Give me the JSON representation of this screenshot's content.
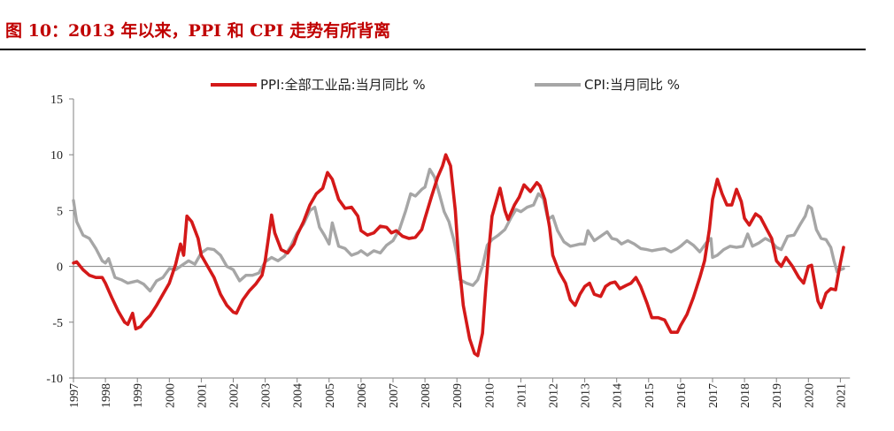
{
  "title": "图 10：2013 年以来，PPI 和 CPI 走势有所背离",
  "chart_data": {
    "type": "line",
    "title": "图 10：2013 年以来，PPI 和 CPI 走势有所背离",
    "xlabel": "",
    "ylabel": "",
    "xlim": [
      1997,
      2021.3
    ],
    "ylim": [
      -10,
      15
    ],
    "yticks": [
      -10,
      -5,
      0,
      5,
      10,
      15
    ],
    "xticks": [
      "1997",
      "1998",
      "1999",
      "2000",
      "2001",
      "2002",
      "2003",
      "2004",
      "2005",
      "2006",
      "2007",
      "2008",
      "2009",
      "2010",
      "2011",
      "2012",
      "2013",
      "2014",
      "2015",
      "2016",
      "2017",
      "2018",
      "2019",
      "2020",
      "2021"
    ],
    "legend": "top-center",
    "grid": false,
    "series": [
      {
        "name": "PPI:全部工业品:当月同比 %",
        "color": "#d41919",
        "points": [
          [
            1997.0,
            0.3
          ],
          [
            1997.1,
            0.4
          ],
          [
            1997.3,
            -0.3
          ],
          [
            1997.5,
            -0.8
          ],
          [
            1997.7,
            -1.0
          ],
          [
            1997.9,
            -1.0
          ],
          [
            1998.0,
            -1.5
          ],
          [
            1998.2,
            -2.8
          ],
          [
            1998.4,
            -4.0
          ],
          [
            1998.6,
            -5.0
          ],
          [
            1998.7,
            -5.2
          ],
          [
            1998.85,
            -4.2
          ],
          [
            1998.95,
            -5.6
          ],
          [
            1999.1,
            -5.4
          ],
          [
            1999.2,
            -5.0
          ],
          [
            1999.4,
            -4.4
          ],
          [
            1999.6,
            -3.5
          ],
          [
            1999.8,
            -2.5
          ],
          [
            2000.0,
            -1.5
          ],
          [
            2000.2,
            0.2
          ],
          [
            2000.35,
            2.0
          ],
          [
            2000.45,
            1.0
          ],
          [
            2000.55,
            4.5
          ],
          [
            2000.7,
            4.0
          ],
          [
            2000.9,
            2.5
          ],
          [
            2001.0,
            1.0
          ],
          [
            2001.2,
            0.0
          ],
          [
            2001.4,
            -1.0
          ],
          [
            2001.6,
            -2.5
          ],
          [
            2001.8,
            -3.5
          ],
          [
            2002.0,
            -4.1
          ],
          [
            2002.1,
            -4.2
          ],
          [
            2002.3,
            -3.0
          ],
          [
            2002.5,
            -2.2
          ],
          [
            2002.7,
            -1.6
          ],
          [
            2002.9,
            -0.8
          ],
          [
            2003.0,
            0.5
          ],
          [
            2003.1,
            2.5
          ],
          [
            2003.2,
            4.6
          ],
          [
            2003.3,
            3.0
          ],
          [
            2003.5,
            1.5
          ],
          [
            2003.7,
            1.2
          ],
          [
            2003.9,
            2.0
          ],
          [
            2004.0,
            2.8
          ],
          [
            2004.2,
            4.0
          ],
          [
            2004.4,
            5.5
          ],
          [
            2004.6,
            6.5
          ],
          [
            2004.8,
            7.0
          ],
          [
            2004.95,
            8.4
          ],
          [
            2005.1,
            7.8
          ],
          [
            2005.3,
            6.0
          ],
          [
            2005.5,
            5.2
          ],
          [
            2005.7,
            5.3
          ],
          [
            2005.9,
            4.5
          ],
          [
            2006.0,
            3.2
          ],
          [
            2006.2,
            2.8
          ],
          [
            2006.4,
            3.0
          ],
          [
            2006.6,
            3.6
          ],
          [
            2006.8,
            3.5
          ],
          [
            2006.95,
            3.0
          ],
          [
            2007.1,
            3.2
          ],
          [
            2007.3,
            2.7
          ],
          [
            2007.5,
            2.5
          ],
          [
            2007.7,
            2.6
          ],
          [
            2007.9,
            3.3
          ],
          [
            2008.0,
            4.3
          ],
          [
            2008.2,
            6.2
          ],
          [
            2008.4,
            8.0
          ],
          [
            2008.55,
            9.0
          ],
          [
            2008.65,
            10.0
          ],
          [
            2008.8,
            9.0
          ],
          [
            2008.95,
            5.0
          ],
          [
            2009.05,
            0.8
          ],
          [
            2009.2,
            -3.5
          ],
          [
            2009.4,
            -6.5
          ],
          [
            2009.55,
            -7.8
          ],
          [
            2009.65,
            -8.0
          ],
          [
            2009.8,
            -6.0
          ],
          [
            2009.9,
            -2.0
          ],
          [
            2010.0,
            1.5
          ],
          [
            2010.1,
            4.5
          ],
          [
            2010.25,
            6.0
          ],
          [
            2010.35,
            7.0
          ],
          [
            2010.5,
            5.0
          ],
          [
            2010.6,
            4.2
          ],
          [
            2010.8,
            5.5
          ],
          [
            2010.95,
            6.2
          ],
          [
            2011.1,
            7.3
          ],
          [
            2011.3,
            6.7
          ],
          [
            2011.5,
            7.5
          ],
          [
            2011.6,
            7.2
          ],
          [
            2011.75,
            6.0
          ],
          [
            2011.9,
            3.5
          ],
          [
            2012.0,
            1.0
          ],
          [
            2012.2,
            -0.5
          ],
          [
            2012.4,
            -1.5
          ],
          [
            2012.55,
            -3.0
          ],
          [
            2012.7,
            -3.5
          ],
          [
            2012.85,
            -2.5
          ],
          [
            2013.0,
            -1.8
          ],
          [
            2013.15,
            -1.5
          ],
          [
            2013.3,
            -2.5
          ],
          [
            2013.5,
            -2.7
          ],
          [
            2013.65,
            -1.8
          ],
          [
            2013.8,
            -1.5
          ],
          [
            2013.95,
            -1.4
          ],
          [
            2014.1,
            -2.0
          ],
          [
            2014.3,
            -1.7
          ],
          [
            2014.45,
            -1.5
          ],
          [
            2014.6,
            -1.0
          ],
          [
            2014.75,
            -1.8
          ],
          [
            2014.95,
            -3.3
          ],
          [
            2015.1,
            -4.6
          ],
          [
            2015.3,
            -4.6
          ],
          [
            2015.5,
            -4.8
          ],
          [
            2015.7,
            -5.9
          ],
          [
            2015.9,
            -5.9
          ],
          [
            2016.0,
            -5.3
          ],
          [
            2016.2,
            -4.3
          ],
          [
            2016.4,
            -2.8
          ],
          [
            2016.6,
            -1.0
          ],
          [
            2016.75,
            0.5
          ],
          [
            2016.9,
            3.3
          ],
          [
            2017.0,
            6.0
          ],
          [
            2017.15,
            7.8
          ],
          [
            2017.3,
            6.5
          ],
          [
            2017.45,
            5.5
          ],
          [
            2017.6,
            5.5
          ],
          [
            2017.75,
            6.9
          ],
          [
            2017.9,
            5.8
          ],
          [
            2018.0,
            4.3
          ],
          [
            2018.15,
            3.7
          ],
          [
            2018.35,
            4.7
          ],
          [
            2018.5,
            4.4
          ],
          [
            2018.7,
            3.3
          ],
          [
            2018.85,
            2.5
          ],
          [
            2019.0,
            0.5
          ],
          [
            2019.15,
            0.0
          ],
          [
            2019.3,
            0.8
          ],
          [
            2019.5,
            0.0
          ],
          [
            2019.7,
            -1.0
          ],
          [
            2019.85,
            -1.5
          ],
          [
            2020.0,
            0.0
          ],
          [
            2020.1,
            0.1
          ],
          [
            2020.2,
            -1.5
          ],
          [
            2020.3,
            -3.1
          ],
          [
            2020.4,
            -3.7
          ],
          [
            2020.55,
            -2.4
          ],
          [
            2020.7,
            -2.0
          ],
          [
            2020.85,
            -2.1
          ],
          [
            2021.0,
            0.3
          ],
          [
            2021.1,
            1.7
          ]
        ]
      },
      {
        "name": "CPI:当月同比 %",
        "color": "#a6a6a6",
        "points": [
          [
            1997.0,
            5.9
          ],
          [
            1997.1,
            4.0
          ],
          [
            1997.3,
            2.8
          ],
          [
            1997.5,
            2.5
          ],
          [
            1997.7,
            1.6
          ],
          [
            1997.9,
            0.5
          ],
          [
            1998.0,
            0.3
          ],
          [
            1998.1,
            0.7
          ],
          [
            1998.3,
            -1.0
          ],
          [
            1998.5,
            -1.2
          ],
          [
            1998.7,
            -1.5
          ],
          [
            1998.85,
            -1.4
          ],
          [
            1999.0,
            -1.3
          ],
          [
            1999.2,
            -1.6
          ],
          [
            1999.4,
            -2.2
          ],
          [
            1999.6,
            -1.3
          ],
          [
            1999.8,
            -1.0
          ],
          [
            2000.0,
            -0.2
          ],
          [
            2000.2,
            -0.3
          ],
          [
            2000.4,
            0.1
          ],
          [
            2000.6,
            0.5
          ],
          [
            2000.8,
            0.2
          ],
          [
            2001.0,
            1.2
          ],
          [
            2001.2,
            1.6
          ],
          [
            2001.4,
            1.5
          ],
          [
            2001.6,
            1.0
          ],
          [
            2001.8,
            0.0
          ],
          [
            2002.0,
            -0.3
          ],
          [
            2002.2,
            -1.3
          ],
          [
            2002.4,
            -0.8
          ],
          [
            2002.6,
            -0.8
          ],
          [
            2002.8,
            -0.6
          ],
          [
            2003.0,
            0.4
          ],
          [
            2003.2,
            0.8
          ],
          [
            2003.4,
            0.5
          ],
          [
            2003.6,
            0.9
          ],
          [
            2003.8,
            1.8
          ],
          [
            2004.0,
            3.0
          ],
          [
            2004.2,
            3.8
          ],
          [
            2004.4,
            5.0
          ],
          [
            2004.55,
            5.3
          ],
          [
            2004.7,
            3.5
          ],
          [
            2004.85,
            2.8
          ],
          [
            2005.0,
            2.0
          ],
          [
            2005.1,
            3.9
          ],
          [
            2005.3,
            1.8
          ],
          [
            2005.5,
            1.6
          ],
          [
            2005.7,
            1.0
          ],
          [
            2005.9,
            1.2
          ],
          [
            2006.0,
            1.4
          ],
          [
            2006.2,
            1.0
          ],
          [
            2006.4,
            1.4
          ],
          [
            2006.6,
            1.2
          ],
          [
            2006.8,
            1.9
          ],
          [
            2007.0,
            2.3
          ],
          [
            2007.2,
            3.3
          ],
          [
            2007.4,
            5.0
          ],
          [
            2007.55,
            6.5
          ],
          [
            2007.7,
            6.3
          ],
          [
            2007.9,
            6.9
          ],
          [
            2008.0,
            7.1
          ],
          [
            2008.15,
            8.7
          ],
          [
            2008.3,
            8.0
          ],
          [
            2008.45,
            6.5
          ],
          [
            2008.6,
            4.9
          ],
          [
            2008.75,
            4.0
          ],
          [
            2008.9,
            2.4
          ],
          [
            2009.0,
            1.0
          ],
          [
            2009.1,
            -1.2
          ],
          [
            2009.3,
            -1.5
          ],
          [
            2009.5,
            -1.7
          ],
          [
            2009.65,
            -1.2
          ],
          [
            2009.8,
            0.0
          ],
          [
            2009.95,
            1.9
          ],
          [
            2010.1,
            2.4
          ],
          [
            2010.3,
            2.8
          ],
          [
            2010.5,
            3.3
          ],
          [
            2010.7,
            4.4
          ],
          [
            2010.85,
            5.1
          ],
          [
            2011.0,
            4.9
          ],
          [
            2011.2,
            5.3
          ],
          [
            2011.4,
            5.5
          ],
          [
            2011.55,
            6.5
          ],
          [
            2011.7,
            6.1
          ],
          [
            2011.85,
            4.2
          ],
          [
            2012.0,
            4.5
          ],
          [
            2012.15,
            3.2
          ],
          [
            2012.35,
            2.2
          ],
          [
            2012.55,
            1.8
          ],
          [
            2012.7,
            1.9
          ],
          [
            2012.85,
            2.0
          ],
          [
            2013.0,
            2.0
          ],
          [
            2013.1,
            3.2
          ],
          [
            2013.3,
            2.3
          ],
          [
            2013.5,
            2.7
          ],
          [
            2013.7,
            3.1
          ],
          [
            2013.85,
            2.5
          ],
          [
            2014.0,
            2.4
          ],
          [
            2014.15,
            2.0
          ],
          [
            2014.35,
            2.3
          ],
          [
            2014.55,
            2.0
          ],
          [
            2014.75,
            1.6
          ],
          [
            2014.95,
            1.5
          ],
          [
            2015.1,
            1.4
          ],
          [
            2015.3,
            1.5
          ],
          [
            2015.5,
            1.6
          ],
          [
            2015.7,
            1.3
          ],
          [
            2015.9,
            1.6
          ],
          [
            2016.0,
            1.8
          ],
          [
            2016.2,
            2.3
          ],
          [
            2016.4,
            1.9
          ],
          [
            2016.6,
            1.3
          ],
          [
            2016.8,
            2.1
          ],
          [
            2016.95,
            2.5
          ],
          [
            2017.0,
            0.8
          ],
          [
            2017.15,
            1.0
          ],
          [
            2017.35,
            1.5
          ],
          [
            2017.55,
            1.8
          ],
          [
            2017.75,
            1.7
          ],
          [
            2017.95,
            1.8
          ],
          [
            2018.1,
            2.9
          ],
          [
            2018.25,
            1.8
          ],
          [
            2018.45,
            2.1
          ],
          [
            2018.65,
            2.5
          ],
          [
            2018.85,
            2.2
          ],
          [
            2019.0,
            1.7
          ],
          [
            2019.15,
            1.5
          ],
          [
            2019.35,
            2.7
          ],
          [
            2019.55,
            2.8
          ],
          [
            2019.75,
            3.8
          ],
          [
            2019.9,
            4.5
          ],
          [
            2020.0,
            5.4
          ],
          [
            2020.1,
            5.2
          ],
          [
            2020.25,
            3.3
          ],
          [
            2020.4,
            2.5
          ],
          [
            2020.55,
            2.4
          ],
          [
            2020.7,
            1.7
          ],
          [
            2020.8,
            0.5
          ],
          [
            2020.9,
            -0.5
          ],
          [
            2021.0,
            -0.3
          ],
          [
            2021.1,
            -0.2
          ]
        ]
      }
    ]
  }
}
